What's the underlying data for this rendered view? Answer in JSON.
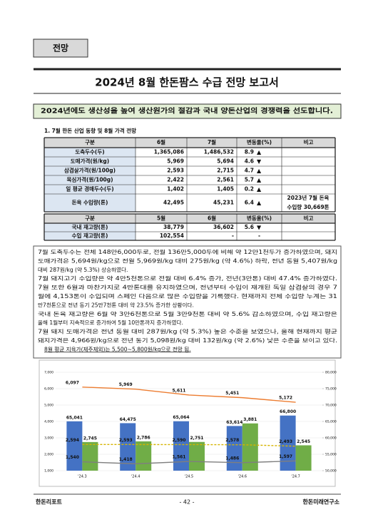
{
  "header": {
    "tag": "전망",
    "title": "2024년 8월 한돈팜스 수급 전망 보고서",
    "banner": "2024년에도 생산성을 높여 생산원가의 절감과 국내 양돈산업의 경쟁력을 선도합니다."
  },
  "section": "1. 7월 한돈 산업 동향 및 8월 가격 전망",
  "table1": {
    "columns": [
      "구분",
      "6월",
      "7월",
      "변동율(%)",
      "비고"
    ],
    "rows": [
      [
        "도축두수(두)",
        "1,365,086",
        "1,486,532",
        "8.9",
        "▲"
      ],
      [
        "도매가격(원/kg)",
        "5,969",
        "5,694",
        "4.6",
        "▼"
      ],
      [
        "삼겹살가격(원/100g)",
        "2,593",
        "2,715",
        "4.7",
        "▲"
      ],
      [
        "목심가격(원/100g)",
        "2,422",
        "2,561",
        "5.7",
        "▲"
      ],
      [
        "일 평균 경매두수(두)",
        "1,402",
        "1,405",
        "0.2",
        "▲"
      ],
      [
        "돈육 수입량(톤)",
        "42,495",
        "45,231",
        "6.4",
        "▲"
      ]
    ],
    "note": [
      "2023년 7월 돈육",
      "수입량 30,669톤"
    ]
  },
  "table2": {
    "columns": [
      "구분",
      "5월",
      "6월",
      "변동율(%)",
      "비고"
    ],
    "rows": [
      [
        "국내 재고량(톤)",
        "38,779",
        "36,602",
        "5.6",
        "▼"
      ],
      [
        "수입 재고량(톤)",
        "102,554",
        "-",
        "-"
      ]
    ]
  },
  "text": [
    "7월 도축두수는 전체 148만6,000두로, 전월 136만5,000두에 비해 약 12만1천두가 증가하였으며, 돼지",
    "도매가격은 5,694원/kg으로 전월 5,969원/kg 대비 275원/kg (약 4.6%) 하락, 전년 동월 5,407원/kg",
    "대비 287원/kg (약 5.3%) 상승하였다.",
    "7월 돼지고기 수입량은 약 4만5천톤으로 전월 대비 6.4% 증가, 전년(3만톤) 대비 47.4% 증가하였다.",
    "7월 또한 6월과 마찬가지로 4만톤대를 유지하였으며, 전년부터 수입이 재개된 독일 삼겹살의 경우 7",
    "월에 4,153톤이 수입되며 스페인 다음으로 많은 수입량을 기록했다. 현재까지 전체 수입량 누계는 31",
    "만7천톤으로 전년 동기 25만7천톤 대비 약 23.5% 증가한 상황이다.",
    "국내 돈육 재고량은 6월 약 3만6천톤으로 5월 3만9천톤 대비 약 5.6% 감소하였으며, 수입 재고량은",
    "올해 1월부터 지속적으로 증가하여 5월 10만톤까지 증가하였다.",
    "7월 돼지 도매가격은 전년 동월 대비 287원/kg (약 5.3%) 높은 수준을 보였으나, 올해 현재까지 평균",
    "돼지가격은 4,966원/kg으로 전년 동기 5,098원/kg 대비 132원/kg (약 2.6%) 낮은 수준을 보이고 있다."
  ],
  "conclusion": "8월 평균 지육가(제주제외)는 5,500~5,800원/kg으로 전망 됨.",
  "chart": {
    "categories": [
      "'24.3",
      "'24.4",
      "'24.5",
      "'24.6",
      "'24.7"
    ],
    "ylim": [
      1000,
      7000
    ],
    "yticks": [
      {
        "value": 1000,
        "label": "1,000"
      },
      {
        "value": 2000,
        "label": "2,000"
      },
      {
        "value": 3000,
        "label": "3,000"
      },
      {
        "value": 4000,
        "label": "4,000"
      },
      {
        "value": 5000,
        "label": "5,000"
      },
      {
        "value": 6000,
        "label": "6,000"
      },
      {
        "value": 7000,
        "label": "7,000"
      }
    ],
    "y2lim": [
      50000,
      80000
    ],
    "y2ticks": [
      {
        "value": 50000,
        "label": "50,000"
      },
      {
        "value": 55000,
        "label": "55,000"
      },
      {
        "value": 60000,
        "label": "60,000"
      },
      {
        "value": 65000,
        "label": "65,000"
      },
      {
        "value": 70000,
        "label": "70,000"
      },
      {
        "value": 75000,
        "label": "75,000"
      },
      {
        "value": 80000,
        "label": "80,000"
      }
    ],
    "series": [
      {
        "kind": "bar",
        "axis": "y2",
        "color": "#4472c4",
        "values": [
          65041,
          64475,
          65064,
          63614,
          66800
        ],
        "value_labels": [
          "65,041",
          "64,475",
          "65,064",
          "63,614",
          "66,800"
        ]
      },
      {
        "kind": "bar",
        "axis": "y",
        "color": "#70ad47",
        "values": [
          2745,
          2786,
          2751,
          3881,
          2545
        ],
        "value_labels": [
          "2,745",
          "2,786",
          "2,751",
          "3,881",
          "2,545"
        ]
      },
      {
        "kind": "line",
        "axis": "y",
        "color": "#ed7d31",
        "values": [
          6097,
          5969,
          5611,
          5451,
          5172
        ],
        "value_labels": [
          "6,097",
          "5,969",
          "5,611",
          "5,451",
          "5,172"
        ]
      },
      {
        "kind": "line",
        "axis": "y",
        "color": "#d6b400",
        "values": [
          2594,
          2593,
          2590,
          2578,
          2493
        ],
        "value_labels": [
          "2,594",
          "2,593",
          "2,590",
          "2,578",
          "2,493"
        ]
      },
      {
        "kind": "line",
        "axis": "y",
        "color": "#7f7f7f",
        "values": [
          1540,
          1418,
          1561,
          1486,
          1597
        ],
        "value_labels": [
          "1,540",
          "1,418",
          "1,561",
          "1,486",
          "1,597"
        ]
      }
    ]
  },
  "footer": {
    "left": "한돈리포트",
    "center": "- 42 -",
    "right": "한돈미래연구소"
  }
}
